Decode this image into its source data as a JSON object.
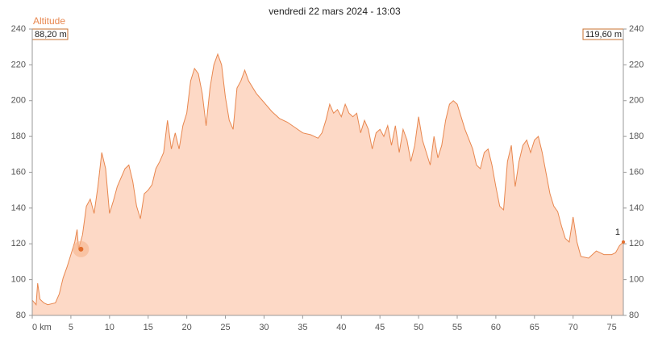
{
  "chart_data": {
    "type": "area",
    "title": "vendredi 22 mars 2024 - 13:03",
    "y_label": "Altitude",
    "start_label": "88,20 m",
    "end_label": "119,60 m",
    "end_marker": "1",
    "color": "#e8874f",
    "fill": "#fdd9c6",
    "x": [
      0,
      0.5,
      0.7,
      1,
      1.5,
      2,
      3,
      3.5,
      4,
      4.5,
      5,
      5.5,
      5.8,
      6,
      6.5,
      7,
      7.5,
      8,
      8.5,
      9,
      9.5,
      10,
      10.5,
      11,
      12,
      12.5,
      13,
      13.5,
      14,
      14.5,
      15,
      15.5,
      16,
      16.5,
      17,
      17.5,
      18,
      18.5,
      19,
      19.5,
      20,
      20.5,
      21,
      21.5,
      22,
      22.5,
      23,
      23.5,
      24,
      24.5,
      25,
      25.5,
      26,
      26.5,
      27,
      27.5,
      28,
      29,
      30,
      31,
      32,
      33,
      34,
      35,
      36,
      37,
      37.5,
      38,
      38.5,
      39,
      39.5,
      40,
      40.5,
      41,
      41.5,
      42,
      42.5,
      43,
      43.5,
      44,
      44.5,
      45,
      45.5,
      46,
      46.5,
      47,
      47.5,
      48,
      48.5,
      49,
      49.5,
      50,
      50.5,
      51,
      51.5,
      52,
      52.5,
      53,
      53.5,
      54,
      54.5,
      55,
      55.5,
      56,
      57,
      57.5,
      58,
      58.5,
      59,
      59.5,
      60,
      60.5,
      61,
      61.5,
      62,
      62.5,
      63,
      63.5,
      64,
      64.5,
      65,
      65.5,
      66,
      67,
      67.5,
      68,
      68.5,
      69,
      69.5,
      70,
      70.5,
      71,
      72,
      73,
      74,
      75,
      75.5,
      76,
      76.5
    ],
    "values": [
      88.5,
      86,
      98,
      89,
      87,
      86,
      87,
      92,
      101,
      107,
      114,
      121,
      128,
      117,
      125,
      141,
      145,
      137,
      152,
      171,
      162,
      137,
      144,
      152,
      162,
      164,
      155,
      141,
      134,
      148,
      150,
      153,
      162,
      166,
      171,
      189,
      173,
      182,
      173,
      186,
      193,
      211,
      218,
      215,
      204,
      186,
      207,
      220,
      226,
      220,
      202,
      189,
      184,
      207,
      211,
      217,
      211,
      204,
      199,
      194,
      190,
      188,
      185,
      182,
      181,
      179,
      182,
      189,
      198,
      193,
      195,
      191,
      198,
      193,
      191,
      193,
      182,
      189,
      184,
      173,
      182,
      184,
      180,
      186,
      175,
      186,
      171,
      184,
      178,
      166,
      175,
      191,
      178,
      171,
      164,
      180,
      168,
      175,
      189,
      198,
      200,
      198,
      191,
      184,
      173,
      164,
      162,
      171,
      173,
      164,
      152,
      141,
      139,
      166,
      175,
      152,
      166,
      175,
      178,
      171,
      178,
      180,
      171,
      148,
      141,
      138,
      130,
      123,
      121,
      135,
      121,
      113,
      112,
      116,
      114,
      114,
      115,
      119,
      121
    ],
    "cursor": {
      "x": 6.3,
      "value": 117
    },
    "xlim": [
      0,
      76.5
    ],
    "ylim": [
      80,
      240
    ],
    "xticks": [
      {
        "value": 0,
        "label": "0 km"
      },
      5,
      10,
      15,
      20,
      25,
      30,
      35,
      40,
      45,
      50,
      55,
      60,
      65,
      70,
      75
    ],
    "yticks": [
      80,
      100,
      120,
      140,
      160,
      180,
      200,
      220,
      240
    ]
  }
}
